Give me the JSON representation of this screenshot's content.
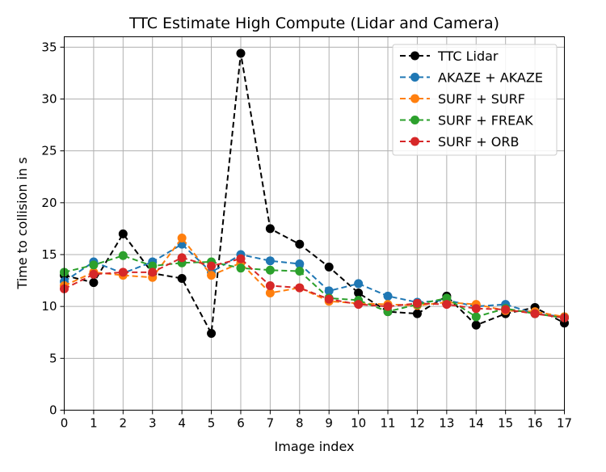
{
  "chart_data": {
    "type": "line",
    "title": "TTC Estimate High Compute (Lidar and Camera)",
    "xlabel": "Image index",
    "ylabel": "Time to collision in s",
    "xlim": [
      0,
      17
    ],
    "ylim": [
      0,
      36
    ],
    "x_ticks": [
      "0",
      "1",
      "2",
      "3",
      "4",
      "5",
      "6",
      "7",
      "8",
      "9",
      "10",
      "11",
      "12",
      "13",
      "14",
      "15",
      "16",
      "17"
    ],
    "y_ticks": [
      "0",
      "5",
      "10",
      "15",
      "20",
      "25",
      "30",
      "35"
    ],
    "grid": true,
    "legend_position": "top-right",
    "x": [
      0,
      1,
      2,
      3,
      4,
      5,
      6,
      7,
      8,
      9,
      10,
      11,
      12,
      13,
      14,
      15,
      16,
      17
    ],
    "series": [
      {
        "name": "TTC Lidar",
        "color": "#000000",
        "values": [
          13.0,
          12.3,
          17.0,
          13.2,
          12.7,
          7.4,
          34.4,
          17.5,
          16.0,
          13.8,
          11.3,
          9.5,
          9.3,
          11.0,
          8.2,
          9.3,
          9.9,
          8.4
        ]
      },
      {
        "name": "AKAZE + AKAZE",
        "color": "#1f77b4",
        "values": [
          12.4,
          14.3,
          13.2,
          14.3,
          16.0,
          13.3,
          15.0,
          14.4,
          14.1,
          11.5,
          12.2,
          11.0,
          10.4,
          10.6,
          10.0,
          10.2,
          9.3,
          9.0
        ]
      },
      {
        "name": "SURF + SURF",
        "color": "#ff7f0e",
        "values": [
          12.0,
          13.3,
          13.0,
          12.8,
          16.6,
          13.0,
          14.2,
          11.3,
          11.8,
          10.5,
          10.3,
          10.2,
          10.1,
          10.4,
          10.2,
          9.6,
          9.5,
          9.0
        ]
      },
      {
        "name": "SURF + FREAK",
        "color": "#2ca02c",
        "values": [
          13.3,
          14.0,
          14.9,
          13.9,
          14.2,
          14.3,
          13.7,
          13.5,
          13.4,
          10.8,
          10.6,
          9.5,
          10.2,
          10.8,
          9.0,
          9.8,
          9.3,
          8.9
        ]
      },
      {
        "name": "SURF + ORB",
        "color": "#d62728",
        "values": [
          11.7,
          13.1,
          13.3,
          13.3,
          14.7,
          13.9,
          14.6,
          12.0,
          11.8,
          10.7,
          10.2,
          10.0,
          10.3,
          10.2,
          9.8,
          9.7,
          9.3,
          8.9
        ]
      }
    ]
  }
}
